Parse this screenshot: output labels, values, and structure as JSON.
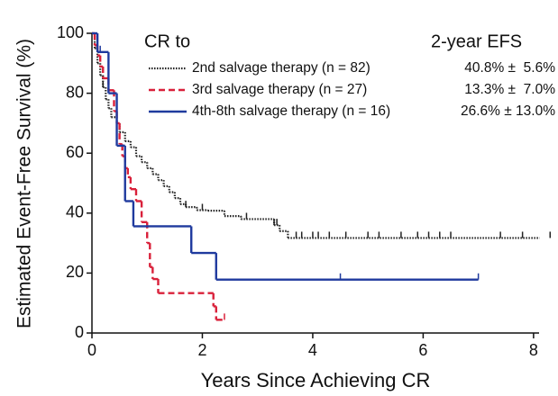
{
  "chart_data": {
    "type": "step",
    "xlabel": "Years Since Achieving CR",
    "ylabel": "Estimated Event-Free Survival (%)",
    "legend_title": "CR to",
    "legend_value_title": "2-year EFS",
    "xlim": [
      0,
      8.1
    ],
    "ylim": [
      0,
      100
    ],
    "xticks": [
      0,
      2,
      4,
      6,
      8
    ],
    "yticks": [
      0,
      20,
      40,
      60,
      80,
      100
    ],
    "series": [
      {
        "name": "2nd salvage therapy (n = 82)",
        "efs_label": "40.8% ±  5.6%",
        "color": "#222222",
        "dash": "dotted",
        "x": [
          0,
          0.05,
          0.1,
          0.15,
          0.2,
          0.25,
          0.3,
          0.35,
          0.45,
          0.5,
          0.6,
          0.7,
          0.8,
          0.9,
          1.0,
          1.1,
          1.2,
          1.3,
          1.4,
          1.5,
          1.6,
          1.7,
          1.9,
          2.1,
          2.4,
          2.7,
          3.3,
          3.4,
          3.55,
          8.1
        ],
        "values": [
          100,
          95,
          90,
          86,
          82,
          78,
          75,
          72,
          70,
          67,
          64,
          62,
          59,
          57,
          55,
          53,
          51,
          49,
          47,
          45,
          43,
          42,
          41,
          40.8,
          39,
          38,
          36,
          34,
          31.7,
          31.7
        ],
        "censored": [
          0.2,
          1.7,
          2.0,
          2.8,
          3.3,
          3.35,
          3.7,
          3.8,
          4.0,
          4.1,
          4.3,
          4.6,
          5.0,
          5.2,
          5.6,
          5.9,
          6.1,
          6.3,
          6.5,
          7.4,
          7.8,
          8.3
        ]
      },
      {
        "name": "3rd salvage therapy (n = 27)",
        "efs_label": "13.3% ±  7.0%",
        "color": "#d9203a",
        "dash": "dashed",
        "x": [
          0,
          0.05,
          0.1,
          0.15,
          0.2,
          0.3,
          0.4,
          0.45,
          0.5,
          0.55,
          0.6,
          0.65,
          0.7,
          0.8,
          0.9,
          1.0,
          1.05,
          1.1,
          1.2,
          2.2,
          2.25,
          2.4
        ],
        "values": [
          100,
          96,
          92.6,
          88.9,
          85,
          81,
          74,
          70,
          63,
          59,
          55,
          52,
          48,
          44,
          37,
          30,
          22,
          18,
          13.3,
          8.9,
          4.4,
          4.4
        ],
        "censored": [
          2.4
        ]
      },
      {
        "name": "4th-8th salvage therapy (n = 16)",
        "efs_label": "26.6% ± 13.0%",
        "color": "#1f3a9e",
        "dash": "solid",
        "x": [
          0,
          0.1,
          0.3,
          0.45,
          0.6,
          0.75,
          1.8,
          2.25,
          7.0
        ],
        "values": [
          100,
          93.75,
          80,
          62.5,
          44,
          35.6,
          26.7,
          17.8,
          17.8
        ],
        "censored": [
          0.15,
          4.5,
          7.0
        ]
      }
    ]
  }
}
